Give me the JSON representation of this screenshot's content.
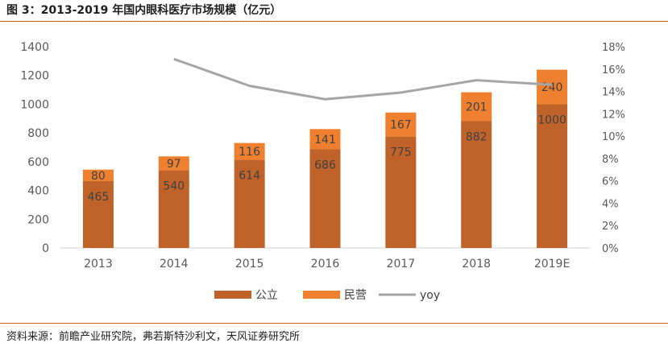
{
  "title": "图 3：2013-2019 年国内眼科医疗市场规模（亿元）",
  "source": "资料来源：前瞻产业研究院，弗若斯特沙利文，天风证券研究所",
  "colors": {
    "public": "#c0632a",
    "private": "#ee8030",
    "yoy": "#a6a6a6",
    "rule": "#c8651b"
  },
  "chart_data": {
    "type": "bar",
    "stacked": true,
    "title": "",
    "xlabel": "",
    "ylabel": "",
    "categories": [
      "2013",
      "2014",
      "2015",
      "2016",
      "2017",
      "2018",
      "2019E"
    ],
    "ylim": [
      0,
      1400
    ],
    "yticks": [
      "0",
      "200",
      "400",
      "600",
      "800",
      "1000",
      "1200",
      "1400"
    ],
    "y2lim": [
      0,
      18
    ],
    "y2ticks": [
      "0%",
      "2%",
      "4%",
      "6%",
      "8%",
      "10%",
      "12%",
      "14%",
      "16%",
      "18%"
    ],
    "series": [
      {
        "name": "公立",
        "type": "bar",
        "values": [
          465,
          540,
          614,
          686,
          775,
          882,
          1000
        ],
        "labels": [
          "465",
          "540",
          "614",
          "686",
          "775",
          "882",
          "1000"
        ]
      },
      {
        "name": "民营",
        "type": "bar",
        "values": [
          80,
          97,
          116,
          141,
          167,
          201,
          240
        ],
        "labels": [
          "80",
          "97",
          "116",
          "141",
          "167",
          "201",
          "240"
        ]
      },
      {
        "name": "yoy",
        "type": "line",
        "axis": "right",
        "values": [
          null,
          16.9,
          14.5,
          13.3,
          13.9,
          15.0,
          14.6
        ]
      }
    ],
    "legend_position": "bottom",
    "grid": false
  }
}
